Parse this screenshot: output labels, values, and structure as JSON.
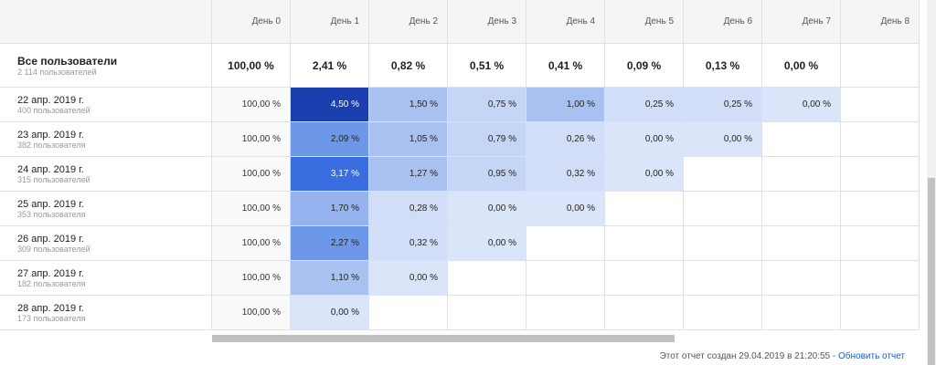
{
  "table": {
    "header": [
      "День 0",
      "День 1",
      "День 2",
      "День 3",
      "День 4",
      "День 5",
      "День 6",
      "День 7",
      "День 8"
    ],
    "total": {
      "label": "Все пользователи",
      "sub": "2 114 пользователей",
      "cells": [
        "100,00 %",
        "2,41 %",
        "0,82 %",
        "0,51 %",
        "0,41 %",
        "0,09 %",
        "0,13 %",
        "0,00 %"
      ]
    },
    "rows": [
      {
        "label": "22 апр. 2019 г.",
        "sub": "400 пользователей",
        "cells": [
          "100,00 %",
          "4,50 %",
          "1,50 %",
          "0,75 %",
          "1,00 %",
          "0,25 %",
          "0,25 %",
          "0,00 %"
        ]
      },
      {
        "label": "23 апр. 2019 г.",
        "sub": "382 пользователя",
        "cells": [
          "100,00 %",
          "2,09 %",
          "1,05 %",
          "0,79 %",
          "0,26 %",
          "0,00 %",
          "0,00 %"
        ]
      },
      {
        "label": "24 апр. 2019 г.",
        "sub": "315 пользователей",
        "cells": [
          "100,00 %",
          "3,17 %",
          "1,27 %",
          "0,95 %",
          "0,32 %",
          "0,00 %"
        ]
      },
      {
        "label": "25 апр. 2019 г.",
        "sub": "353 пользователя",
        "cells": [
          "100,00 %",
          "1,70 %",
          "0,28 %",
          "0,00 %",
          "0,00 %"
        ]
      },
      {
        "label": "26 апр. 2019 г.",
        "sub": "309 пользователей",
        "cells": [
          "100,00 %",
          "2,27 %",
          "0,32 %",
          "0,00 %"
        ]
      },
      {
        "label": "27 апр. 2019 г.",
        "sub": "182 пользователя",
        "cells": [
          "100,00 %",
          "1,10 %",
          "0,00 %"
        ]
      },
      {
        "label": "28 апр. 2019 г.",
        "sub": "173 пользователя",
        "cells": [
          "100,00 %",
          "0,00 %"
        ]
      }
    ]
  },
  "footer": {
    "text": "Этот отчет создан 29.04.2019 в 21:20:55 -",
    "link": "Обновить отчет"
  }
}
